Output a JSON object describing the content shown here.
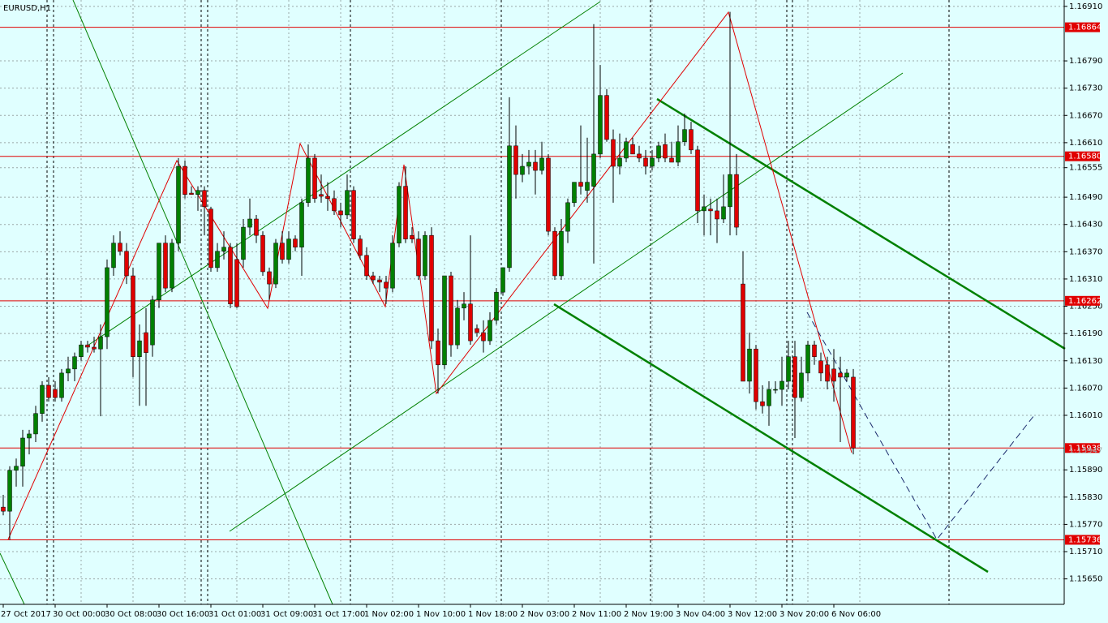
{
  "chart_data": {
    "type": "candlestick",
    "title": "EURUSD,H1",
    "up_color": "#008000",
    "down_color": "#e00000",
    "wick_color": "#000000",
    "level_color": "#e00000",
    "grid": true,
    "ylim": [
      1.15594,
      1.16924
    ],
    "yticks": [
      {
        "value": 1.1691,
        "label": "1.16910"
      },
      {
        "value": 1.1679,
        "label": "1.16790"
      },
      {
        "value": 1.1673,
        "label": "1.16730"
      },
      {
        "value": 1.1667,
        "label": "1.16670"
      },
      {
        "value": 1.1661,
        "label": "1.16610"
      },
      1.16555,
      {
        "value": 1.1649,
        "label": "1.16490"
      },
      {
        "value": 1.1643,
        "label": "1.16430"
      },
      {
        "value": 1.1637,
        "label": "1.16370"
      },
      {
        "value": 1.1631,
        "label": "1.16310"
      },
      {
        "value": 1.1625,
        "label": "1.16250"
      },
      {
        "value": 1.1619,
        "label": "1.16190"
      },
      {
        "value": 1.1613,
        "label": "1.16130"
      },
      {
        "value": 1.1607,
        "label": "1.16070"
      },
      {
        "value": 1.1601,
        "label": "1.16010"
      },
      {
        "value": 1.1589,
        "label": "1.15890"
      },
      {
        "value": 1.1583,
        "label": "1.15830"
      },
      {
        "value": 1.1577,
        "label": "1.15770"
      },
      {
        "value": 1.1571,
        "label": "1.15710"
      },
      {
        "value": 1.1565,
        "label": "1.15650"
      }
    ],
    "xticks": [
      {
        "value": 0,
        "label": "27 Oct 2017"
      },
      {
        "value": 8,
        "label": "30 Oct 00:00"
      },
      {
        "value": 16,
        "label": "30 Oct 08:00"
      },
      {
        "value": 24,
        "label": "30 Oct 16:00"
      },
      {
        "value": 32,
        "label": "31 Oct 01:00"
      },
      {
        "value": 40,
        "label": "31 Oct 09:00"
      },
      {
        "value": 48,
        "label": "31 Oct 17:00"
      },
      {
        "value": 56,
        "label": "1 Nov 02:00"
      },
      {
        "value": 64,
        "label": "1 Nov 10:00"
      },
      {
        "value": 72,
        "label": "1 Nov 18:00"
      },
      {
        "value": 80,
        "label": "2 Nov 03:00"
      },
      {
        "value": 88,
        "label": "2 Nov 11:00"
      },
      {
        "value": 96,
        "label": "2 Nov 19:00"
      },
      {
        "value": 104,
        "label": "3 Nov 04:00"
      },
      {
        "value": 112,
        "label": "3 Nov 12:00"
      },
      {
        "value": 120,
        "label": "3 Nov 20:00"
      },
      {
        "value": 128,
        "label": "6 Nov 06:00"
      }
    ],
    "levels": [
      {
        "value": 1.16864,
        "label": "1.16864"
      },
      {
        "value": 1.1658,
        "label": "1.16580"
      },
      {
        "value": 1.16262,
        "label": "1.16262"
      },
      {
        "value": 1.15938,
        "label": "1.15938"
      },
      {
        "value": 1.15736,
        "label": "1.15736"
      }
    ],
    "ask_price": 1.15947,
    "candles": [
      [
        1.15808,
        1.15835,
        1.1579,
        1.15799
      ],
      [
        1.15799,
        1.15898,
        1.15736,
        1.15889
      ],
      [
        1.15889,
        1.15915,
        1.15853,
        1.15898
      ],
      [
        1.15898,
        1.15978,
        1.15853,
        1.1596
      ],
      [
        1.1596,
        1.15978,
        1.15924,
        1.15969
      ],
      [
        1.15969,
        1.16031,
        1.15951,
        1.16014
      ],
      [
        1.16014,
        1.16085,
        1.15996,
        1.16076
      ],
      [
        1.16076,
        1.16094,
        1.1604,
        1.16049
      ],
      [
        1.16067,
        1.16085,
        1.1604,
        1.16049
      ],
      [
        1.16049,
        1.16112,
        1.1604,
        1.16103
      ],
      [
        1.16103,
        1.16139,
        1.16085,
        1.16112
      ],
      [
        1.16112,
        1.16148,
        1.16085,
        1.16139
      ],
      [
        1.16139,
        1.16174,
        1.1613,
        1.16165
      ],
      [
        1.16165,
        1.16174,
        1.16148,
        1.1616
      ],
      [
        1.1616,
        1.16183,
        1.16148,
        1.16156
      ],
      [
        1.16156,
        1.1621,
        1.16008,
        1.16183
      ],
      [
        1.16183,
        1.16353,
        1.16156,
        1.16335
      ],
      [
        1.16335,
        1.16406,
        1.16317,
        1.16389
      ],
      [
        1.16389,
        1.16415,
        1.16362,
        1.16371
      ],
      [
        1.16371,
        1.16389,
        1.16299,
        1.16317
      ],
      [
        1.16317,
        1.16335,
        1.16094,
        1.16139
      ],
      [
        1.16139,
        1.1621,
        1.16031,
        1.16174
      ],
      [
        1.16192,
        1.16246,
        1.16031,
        1.16148
      ],
      [
        1.16165,
        1.16273,
        1.16139,
        1.16264
      ],
      [
        1.16264,
        1.16389,
        1.16246,
        1.16389
      ],
      [
        1.16389,
        1.16406,
        1.16281,
        1.1629
      ],
      [
        1.1629,
        1.16398,
        1.16281,
        1.16389
      ],
      [
        1.16389,
        1.16576,
        1.16371,
        1.16558
      ],
      [
        1.16558,
        1.16571,
        1.16487,
        1.16496
      ],
      [
        1.16499,
        1.16514,
        1.16496,
        1.16496
      ],
      [
        1.16496,
        1.16514,
        1.1646,
        1.16505
      ],
      [
        1.16505,
        1.16514,
        1.16406,
        1.16469
      ],
      [
        1.16464,
        1.16469,
        1.16326,
        1.16335
      ],
      [
        1.16335,
        1.16389,
        1.16326,
        1.16371
      ],
      [
        1.16371,
        1.16415,
        1.16353,
        1.1638
      ],
      [
        1.1638,
        1.16389,
        1.16246,
        1.16255
      ],
      [
        1.16353,
        1.16389,
        1.16246,
        1.16249
      ],
      [
        1.16353,
        1.16442,
        1.16335,
        1.16424
      ],
      [
        1.16424,
        1.16487,
        1.16406,
        1.16442
      ],
      [
        1.16442,
        1.16451,
        1.16389,
        1.16406
      ],
      [
        1.16406,
        1.16415,
        1.16317,
        1.16326
      ],
      [
        1.16326,
        1.16335,
        1.16264,
        1.16299
      ],
      [
        1.16299,
        1.16398,
        1.1629,
        1.16389
      ],
      [
        1.16389,
        1.16415,
        1.16344,
        1.16353
      ],
      [
        1.16353,
        1.16415,
        1.16344,
        1.16398
      ],
      [
        1.16398,
        1.16406,
        1.16371,
        1.1638
      ],
      [
        1.1638,
        1.16487,
        1.16317,
        1.16478
      ],
      [
        1.16478,
        1.16606,
        1.16469,
        1.16576
      ],
      [
        1.16576,
        1.16585,
        1.16478,
        1.16487
      ],
      [
        1.16496,
        1.1654,
        1.16478,
        1.16492
      ],
      [
        1.16492,
        1.16523,
        1.1646,
        1.16487
      ],
      [
        1.16487,
        1.16505,
        1.16451,
        1.1646
      ],
      [
        1.1646,
        1.16478,
        1.16424,
        1.16451
      ],
      [
        1.16451,
        1.1654,
        1.16442,
        1.16505
      ],
      [
        1.16505,
        1.16514,
        1.16389,
        1.16398
      ],
      [
        1.16398,
        1.16406,
        1.16353,
        1.16362
      ],
      [
        1.16362,
        1.1638,
        1.16308,
        1.16317
      ],
      [
        1.16317,
        1.16326,
        1.16299,
        1.16308
      ],
      [
        1.16308,
        1.16317,
        1.16281,
        1.16303
      ],
      [
        1.16303,
        1.16317,
        1.16255,
        1.1629
      ],
      [
        1.1629,
        1.16406,
        1.16281,
        1.16389
      ],
      [
        1.16389,
        1.16523,
        1.1638,
        1.16514
      ],
      [
        1.16514,
        1.16558,
        1.16389,
        1.16398
      ],
      [
        1.16406,
        1.16424,
        1.16389,
        1.16398
      ],
      [
        1.16398,
        1.16415,
        1.16308,
        1.16317
      ],
      [
        1.16317,
        1.16415,
        1.16308,
        1.16406
      ],
      [
        1.16406,
        1.16424,
        1.16156,
        1.16174
      ],
      [
        1.16174,
        1.16201,
        1.16058,
        1.16121
      ],
      [
        1.16121,
        1.16317,
        1.16112,
        1.16317
      ],
      [
        1.16317,
        1.16326,
        1.16139,
        1.16165
      ],
      [
        1.16165,
        1.16264,
        1.16156,
        1.16246
      ],
      [
        1.16246,
        1.16281,
        1.16219,
        1.16255
      ],
      [
        1.16255,
        1.16406,
        1.16165,
        1.16174
      ],
      [
        1.16201,
        1.1621,
        1.16183,
        1.16192
      ],
      [
        1.16192,
        1.16219,
        1.16148,
        1.16174
      ],
      [
        1.16174,
        1.16237,
        1.16165,
        1.16219
      ],
      [
        1.16219,
        1.1629,
        1.1621,
        1.16281
      ],
      [
        1.16281,
        1.16335,
        1.16273,
        1.16335
      ],
      [
        1.16335,
        1.1671,
        1.16326,
        1.16603
      ],
      [
        1.16603,
        1.16648,
        1.16487,
        1.1654
      ],
      [
        1.1654,
        1.16585,
        1.16523,
        1.16558
      ],
      [
        1.16558,
        1.16594,
        1.1654,
        1.16567
      ],
      [
        1.16567,
        1.16594,
        1.16496,
        1.16549
      ],
      [
        1.16549,
        1.16612,
        1.1654,
        1.16576
      ],
      [
        1.16576,
        1.16585,
        1.16406,
        1.16415
      ],
      [
        1.16415,
        1.16424,
        1.16308,
        1.16317
      ],
      [
        1.16317,
        1.16442,
        1.16308,
        1.16415
      ],
      [
        1.16415,
        1.16487,
        1.16389,
        1.16478
      ],
      [
        1.16478,
        1.16523,
        1.16469,
        1.16523
      ],
      [
        1.16523,
        1.16648,
        1.16496,
        1.16514
      ],
      [
        1.16505,
        1.16621,
        1.16478,
        1.16523
      ],
      [
        1.16514,
        1.16871,
        1.16344,
        1.16585
      ],
      [
        1.16585,
        1.16781,
        1.16576,
        1.16714
      ],
      [
        1.16714,
        1.16728,
        1.16612,
        1.16617
      ],
      [
        1.16617,
        1.16639,
        1.16478,
        1.16558
      ],
      [
        1.16558,
        1.1663,
        1.1654,
        1.16576
      ],
      [
        1.16576,
        1.16621,
        1.16567,
        1.16612
      ],
      [
        1.16606,
        1.16621,
        1.16585,
        1.16585
      ],
      [
        1.16585,
        1.16603,
        1.16567,
        1.16576
      ],
      [
        1.16576,
        1.16594,
        1.1654,
        1.16558
      ],
      [
        1.16558,
        1.16594,
        1.16549,
        1.16576
      ],
      [
        1.16576,
        1.16612,
        1.16567,
        1.16603
      ],
      [
        1.16606,
        1.1663,
        1.16567,
        1.16576
      ],
      [
        1.16576,
        1.16612,
        1.16567,
        1.16567
      ],
      [
        1.16567,
        1.16648,
        1.16558,
        1.16612
      ],
      [
        1.16612,
        1.16674,
        1.16603,
        1.16639
      ],
      [
        1.16639,
        1.16656,
        1.16585,
        1.16594
      ],
      [
        1.16594,
        1.16603,
        1.16433,
        1.1646
      ],
      [
        1.1646,
        1.16496,
        1.16406,
        1.16469
      ],
      [
        1.16464,
        1.16487,
        1.16406,
        1.1646
      ],
      [
        1.1646,
        1.16487,
        1.16389,
        1.16442
      ],
      [
        1.16442,
        1.1654,
        1.16433,
        1.16469
      ],
      [
        1.16469,
        1.16898,
        1.16406,
        1.1654
      ],
      [
        1.1654,
        1.16585,
        1.16406,
        1.16424
      ],
      [
        1.16299,
        1.16371,
        1.16085,
        1.16085
      ],
      [
        1.16085,
        1.16192,
        1.16058,
        1.16156
      ],
      [
        1.16156,
        1.16165,
        1.16023,
        1.1604
      ],
      [
        1.1604,
        1.16076,
        1.16014,
        1.16031
      ],
      [
        1.16031,
        1.16085,
        1.15987,
        1.16067
      ],
      [
        1.16067,
        1.16085,
        1.16058,
        1.16067
      ],
      [
        1.16067,
        1.16139,
        1.16031,
        1.16085
      ],
      [
        1.16085,
        1.16174,
        1.16067,
        1.16139
      ],
      [
        1.16139,
        1.16174,
        1.1596,
        1.16049
      ],
      [
        1.16049,
        1.16139,
        1.1604,
        1.16103
      ],
      [
        1.16103,
        1.16174,
        1.16085,
        1.16165
      ],
      [
        1.16165,
        1.16174,
        1.16121,
        1.16139
      ],
      [
        1.1613,
        1.16148,
        1.16085,
        1.16103
      ],
      [
        1.16121,
        1.16139,
        1.16067,
        1.16085
      ],
      [
        1.16112,
        1.16156,
        1.1604,
        1.16085
      ],
      [
        1.16103,
        1.16139,
        1.15951,
        1.16094
      ],
      [
        1.16094,
        1.16112,
        1.16085,
        1.16103
      ],
      [
        1.16094,
        1.16112,
        1.15924,
        1.15938
      ]
    ]
  }
}
